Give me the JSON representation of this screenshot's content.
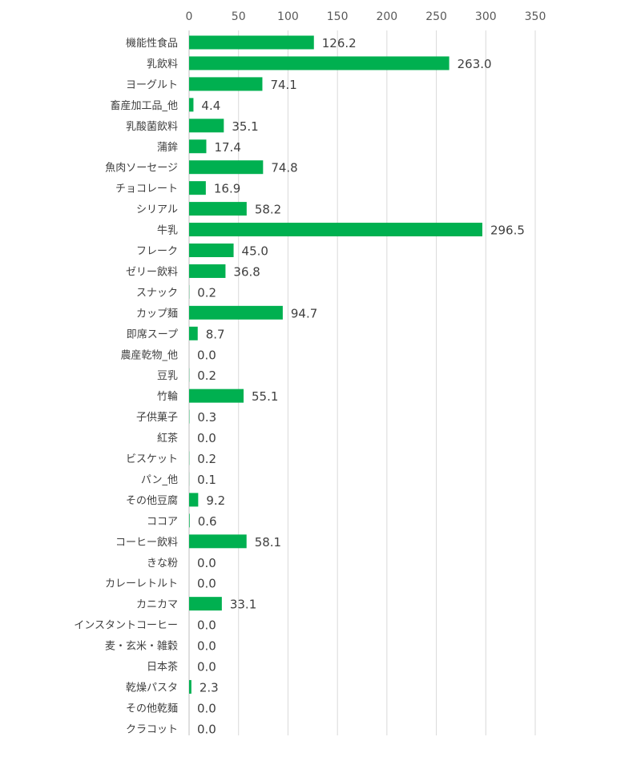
{
  "chart_data": {
    "type": "bar",
    "orientation": "horizontal",
    "title": "",
    "xlabel": "",
    "ylabel": "",
    "xlim": [
      0,
      350
    ],
    "x_ticks": [
      0,
      50,
      100,
      150,
      200,
      250,
      300,
      350
    ],
    "x_axis_position": "top",
    "grid": true,
    "legend": "none",
    "bar_color": "#00b050",
    "categories": [
      "機能性食品",
      "乳飲料",
      "ヨーグルト",
      "畜産加工品_他",
      "乳酸菌飲料",
      "蒲鉾",
      "魚肉ソーセージ",
      "チョコレート",
      "シリアル",
      "牛乳",
      "フレーク",
      "ゼリー飲料",
      "スナック",
      "カップ麺",
      "即席スープ",
      "農産乾物_他",
      "豆乳",
      "竹輪",
      "子供菓子",
      "紅茶",
      "ビスケット",
      "パン_他",
      "その他豆腐",
      "ココア",
      "コーヒー飲料",
      "きな粉",
      "カレーレトルト",
      "カニカマ",
      "インスタントコーヒー",
      "麦・玄米・雑穀",
      "日本茶",
      "乾燥パスタ",
      "その他乾麺",
      "クラコット"
    ],
    "values": [
      126.2,
      263.0,
      74.1,
      4.4,
      35.1,
      17.4,
      74.8,
      16.9,
      58.2,
      296.5,
      45.0,
      36.8,
      0.2,
      94.7,
      8.7,
      0.0,
      0.2,
      55.1,
      0.3,
      0.0,
      0.2,
      0.1,
      9.2,
      0.6,
      58.1,
      0.0,
      0.0,
      33.1,
      0.0,
      0.0,
      0.0,
      2.3,
      0.0,
      0.0
    ],
    "value_labels": [
      "126.2",
      "263.0",
      "74.1",
      "4.4",
      "35.1",
      "17.4",
      "74.8",
      "16.9",
      "58.2",
      "296.5",
      "45.0",
      "36.8",
      "0.2",
      "94.7",
      "8.7",
      "0.0",
      "0.2",
      "55.1",
      "0.3",
      "0.0",
      "0.2",
      "0.1",
      "9.2",
      "0.6",
      "58.1",
      "0.0",
      "0.0",
      "33.1",
      "0.0",
      "0.0",
      "0.0",
      "2.3",
      "0.0",
      "0.0"
    ]
  }
}
